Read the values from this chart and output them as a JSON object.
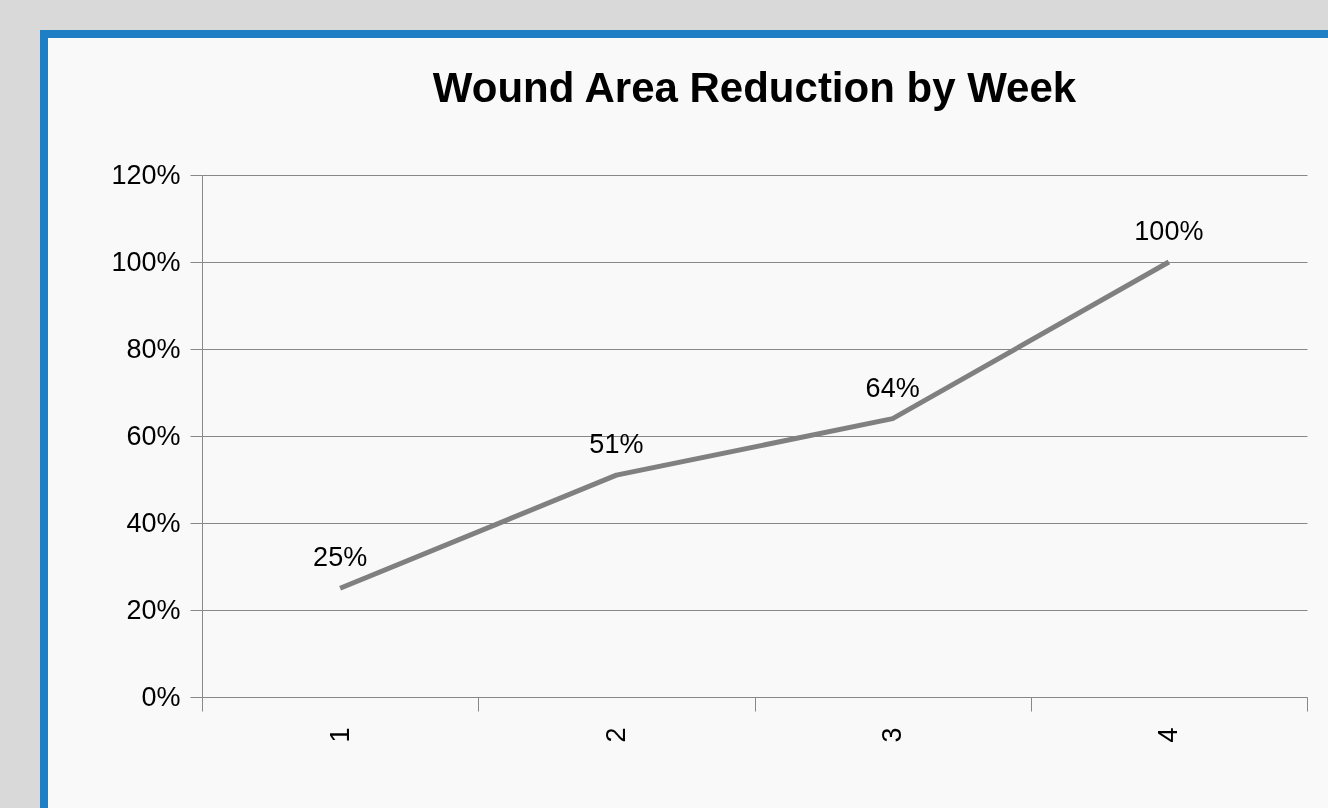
{
  "chart_data": {
    "type": "line",
    "title": "Wound Area Reduction by Week",
    "categories": [
      "1",
      "2",
      "3",
      "4"
    ],
    "series": [
      {
        "color": "#808080",
        "values": [
          25,
          51,
          64,
          100
        ],
        "value_labels": [
          "25%",
          "51%",
          "64%",
          "100%"
        ]
      }
    ],
    "ylim": [
      0,
      120
    ],
    "yticks": [
      {
        "value": 0,
        "label": "0%"
      },
      {
        "value": 20,
        "label": "20%"
      },
      {
        "value": 40,
        "label": "40%"
      },
      {
        "value": 60,
        "label": "60%"
      },
      {
        "value": 80,
        "label": "80%"
      },
      {
        "value": 100,
        "label": "100%"
      },
      {
        "value": 120,
        "label": "120%"
      }
    ],
    "grid": "y",
    "legend": false,
    "marker": "none",
    "line_style": "solid"
  }
}
